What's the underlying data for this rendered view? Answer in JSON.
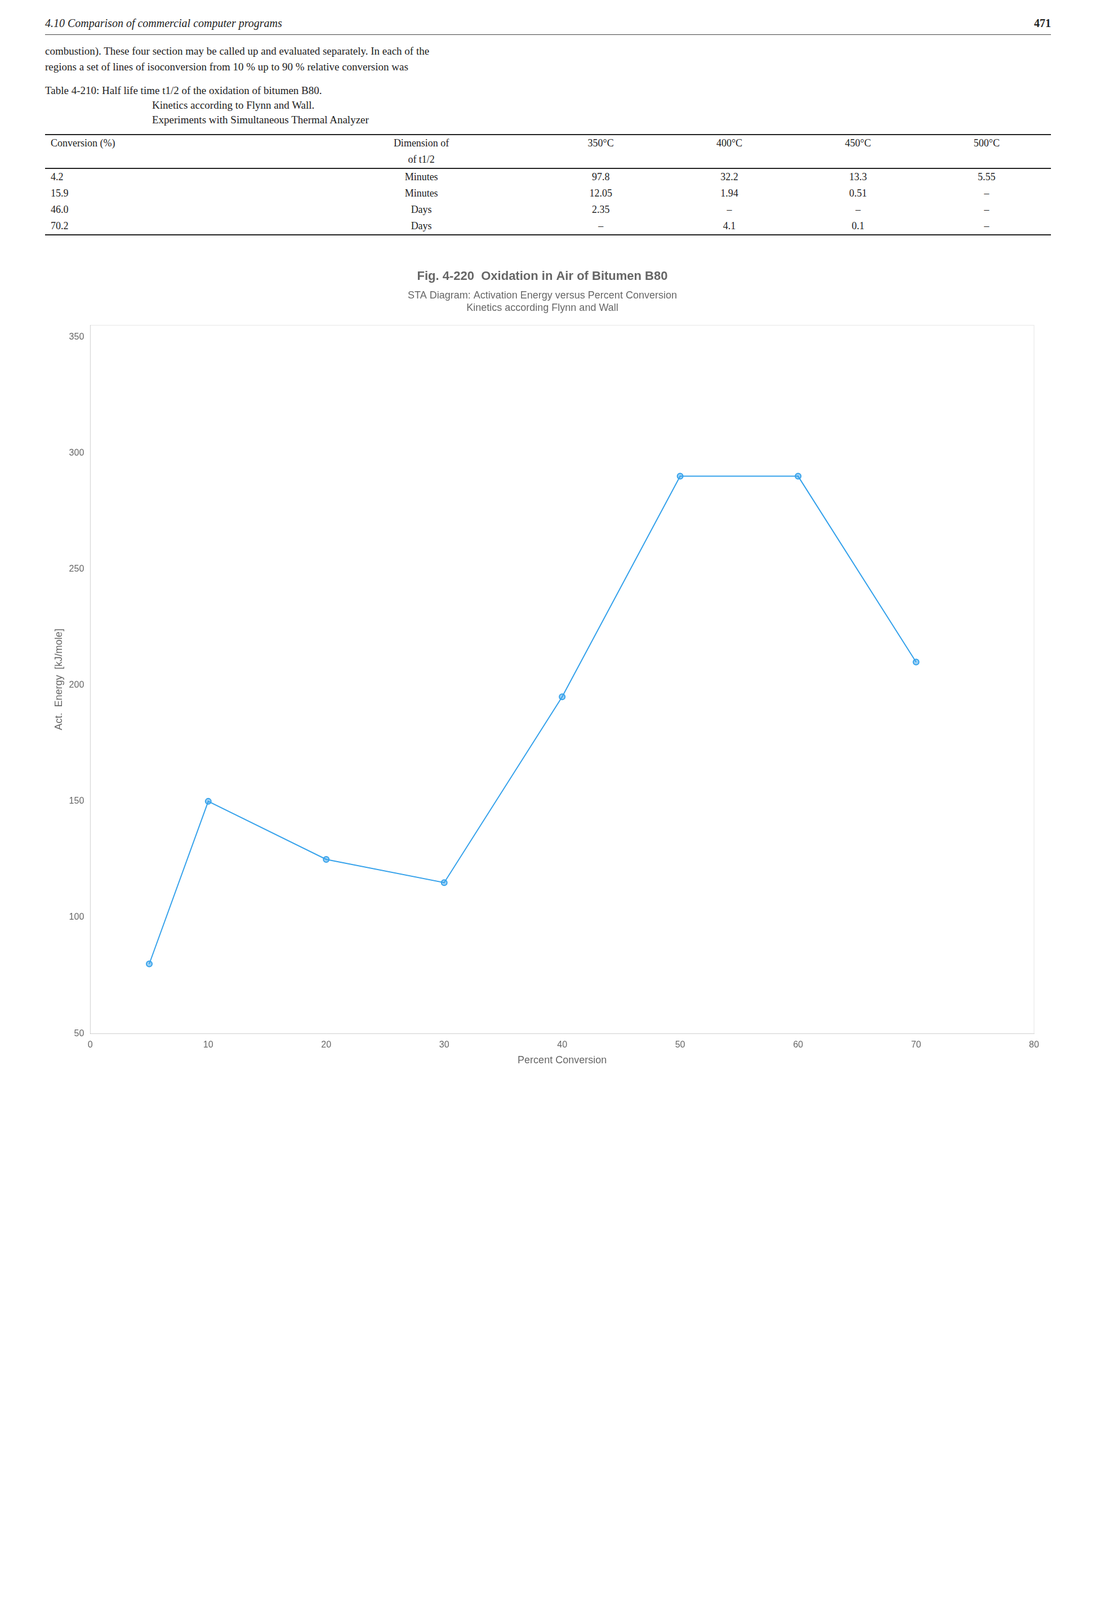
{
  "chart_data": {
    "type": "line",
    "title": "Fig. 4-220  Oxidation in Air of Bitumen B80",
    "subtitle": [
      "STA Diagram: Activation Energy versus Percent Conversion",
      "Kinetics according Flynn and Wall"
    ],
    "x_label": "Percent Conversion",
    "y_label": "Act.  Energy  [kJ/mole]",
    "x": [
      5,
      10,
      20,
      30,
      40,
      50,
      60,
      70
    ],
    "values": [
      80,
      150,
      125,
      115,
      195,
      290,
      290,
      210
    ],
    "xlim": [
      0,
      80
    ],
    "xticks": [
      0,
      10,
      20,
      30,
      40,
      50,
      60,
      70,
      80
    ],
    "ylim": [
      50,
      355
    ],
    "yticks": [
      50,
      100,
      150,
      200,
      250,
      300,
      350
    ],
    "grid": false,
    "marker": "circle",
    "line_style": "solid",
    "annotations": [
      "4.10  Comparison of commercial computer programs",
      "471",
      "combustion). These four section may be called up and evaluated separately. In each of the",
      "regions a set of lines of isoconversion from 10 % up to 90 % relative conversion was",
      "Table 4-210: Half life time t1/2 of the oxidation of bitumen B80.",
      "Kinetics according to Flynn and Wall.",
      "Experiments with Simultaneous Thermal Analyzer"
    ],
    "table": {
      "header_rows": [
        [
          "Conversion (%)",
          "Dimension of",
          "350°C",
          "400°C",
          "450°C",
          "500°C"
        ],
        [
          null,
          "of t1/2",
          null,
          null,
          null,
          null
        ]
      ],
      "rows": [
        [
          "4.2",
          "Minutes",
          "97.8",
          "32.2",
          "13.3",
          "5.55"
        ],
        [
          "15.9",
          "Minutes",
          "12.05",
          "1.94",
          "0.51",
          "–"
        ],
        [
          "46.0",
          "Days",
          "2.35",
          "–",
          "–",
          "–"
        ],
        [
          "70.2",
          "Days",
          "–",
          "4.1",
          "0.1",
          "–"
        ]
      ]
    }
  }
}
